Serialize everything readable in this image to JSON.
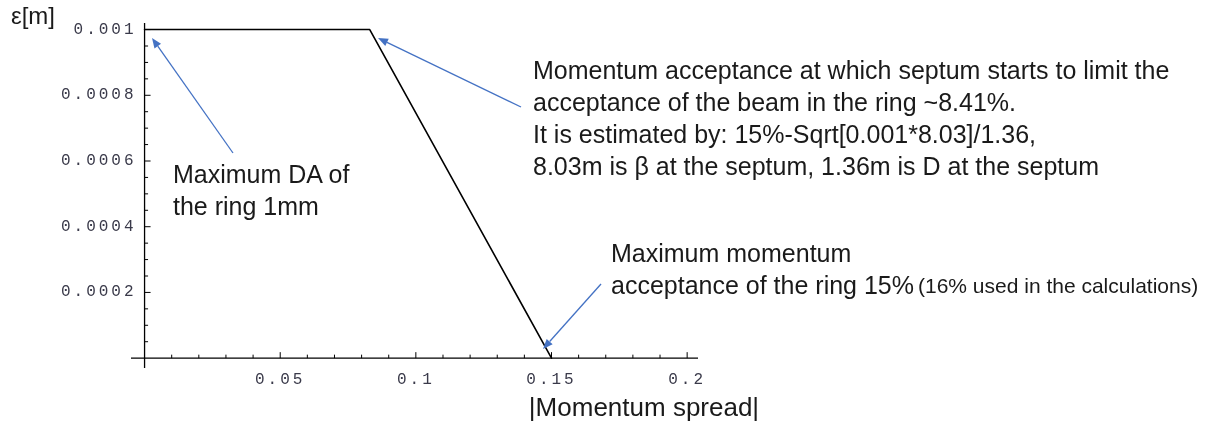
{
  "chart_data": {
    "type": "line",
    "xlabel": "|Momentum spread|",
    "ylabel": "ε[m]",
    "x": [
      0,
      0.083,
      0.15
    ],
    "series": [
      {
        "color": "#000000",
        "values": [
          0.001,
          0.001,
          0
        ]
      }
    ],
    "xlim": [
      -0.005,
      0.204
    ],
    "ylim": [
      -3e-05,
      0.00102
    ],
    "xticks": [
      {
        "value": 0.01,
        "label": null
      },
      {
        "value": 0.02,
        "label": null
      },
      {
        "value": 0.03,
        "label": null
      },
      {
        "value": 0.04,
        "label": null
      },
      0.05,
      {
        "value": 0.06,
        "label": null
      },
      {
        "value": 0.07,
        "label": null
      },
      {
        "value": 0.08,
        "label": null
      },
      {
        "value": 0.09,
        "label": null
      },
      0.1,
      {
        "value": 0.11,
        "label": null
      },
      {
        "value": 0.12,
        "label": null
      },
      {
        "value": 0.13,
        "label": null
      },
      {
        "value": 0.14,
        "label": null
      },
      0.15,
      {
        "value": 0.16,
        "label": null
      },
      {
        "value": 0.17,
        "label": null
      },
      {
        "value": 0.18,
        "label": null
      },
      {
        "value": 0.19,
        "label": null
      },
      0.2
    ],
    "yticks": [
      {
        "value": 5e-05,
        "label": null
      },
      {
        "value": 0.0001,
        "label": null
      },
      {
        "value": 0.00015,
        "label": null
      },
      0.0002,
      {
        "value": 0.00025,
        "label": null
      },
      {
        "value": 0.0003,
        "label": null
      },
      {
        "value": 0.00035,
        "label": null
      },
      0.0004,
      {
        "value": 0.00045,
        "label": null
      },
      {
        "value": 0.0005,
        "label": null
      },
      {
        "value": 0.00055,
        "label": null
      },
      0.0006,
      {
        "value": 0.00065,
        "label": null
      },
      {
        "value": 0.0007,
        "label": null
      },
      {
        "value": 0.00075,
        "label": null
      },
      0.0008,
      {
        "value": 0.00085,
        "label": null
      },
      {
        "value": 0.0009,
        "label": null
      },
      {
        "value": 0.00095,
        "label": null
      },
      0.001
    ],
    "annotations": [
      "Maximum DA of\nthe ring 1mm",
      "Momentum acceptance at which septum starts to limit the\nacceptance of the beam in the ring ~8.41%.\nIt is estimated by: 15%-Sqrt[0.001*8.03]/1.36,\n8.03m is β at the septum, 1.36m is D at the septum",
      "Maximum momentum\nacceptance of the ring 15%",
      "(16% used in the calculations)"
    ]
  }
}
